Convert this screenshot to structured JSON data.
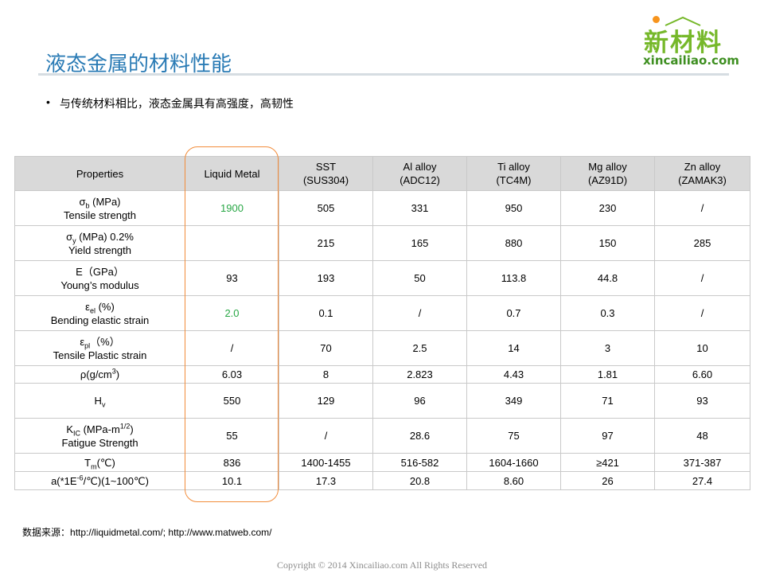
{
  "slide": {
    "title": "液态金属的材料性能",
    "bullet_marker": "•",
    "bullet": "与传统材料相比，液态金属具有高强度，高韧性"
  },
  "logo": {
    "brand_cn": "新材料",
    "brand_url": "xincailiao.com",
    "colors": {
      "green": "#76b82a",
      "dark_green": "#3e8f21",
      "orange": "#f7941d"
    }
  },
  "table": {
    "headers": [
      {
        "l1": "Properties",
        "l2": ""
      },
      {
        "l1": "Liquid Metal",
        "l2": ""
      },
      {
        "l1": "SST",
        "l2": "(SUS304)"
      },
      {
        "l1": "Al alloy",
        "l2": "(ADC12)"
      },
      {
        "l1": "Ti alloy",
        "l2": "(TC4M)"
      },
      {
        "l1": "Mg alloy",
        "l2": "(AZ91D)"
      },
      {
        "l1": "Zn alloy",
        "l2": "(ZAMAK3)"
      }
    ],
    "rows": [
      {
        "sym": "σ",
        "sub": "b",
        "sup": "",
        "suffix": " (MPa)",
        "name": "Tensile strength",
        "values": [
          "1900",
          "505",
          "331",
          "950",
          "230",
          "/"
        ]
      },
      {
        "sym": "σ",
        "sub": "y",
        "sup": "",
        "suffix": " (MPa) 0.2%",
        "name": "Yield strength",
        "values": [
          "",
          "215",
          "165",
          "880",
          "150",
          "285"
        ]
      },
      {
        "sym": "E（GPa）",
        "sub": "",
        "sup": "",
        "suffix": "",
        "name": "Young’s modulus",
        "values": [
          "93",
          "193",
          "50",
          "113.8",
          "44.8",
          "/"
        ]
      },
      {
        "sym": "ε",
        "sub": "el",
        "sup": "",
        "suffix": " (%)",
        "name": "Bending elastic strain",
        "values": [
          "2.0",
          "0.1",
          "/",
          "0.7",
          "0.3",
          "/"
        ]
      },
      {
        "sym": "ε",
        "sub": "pl",
        "sup": "",
        "suffix": "（%）",
        "name": "Tensile Plastic strain",
        "values": [
          "/",
          "70",
          "2.5",
          "14",
          "3",
          "10"
        ]
      },
      {
        "sym": "ρ(g/cm",
        "sub": "",
        "sup": "3",
        "suffix": ")",
        "name": "",
        "values": [
          "6.03",
          "8",
          "2.823",
          "4.43",
          "1.81",
          "6.60"
        ]
      },
      {
        "sym": "H",
        "sub": "v",
        "sup": "",
        "suffix": "",
        "name": "",
        "values": [
          "550",
          "129",
          "96",
          "349",
          "71",
          "93"
        ]
      },
      {
        "sym": "K",
        "sub": "IC",
        "sup": "",
        "suffix": " (MPa-m",
        "sup2": "1/2",
        "suffix2": ")",
        "name": "Fatigue Strength",
        "values": [
          "55",
          "/",
          "28.6",
          "75",
          "97",
          "48"
        ]
      },
      {
        "sym": "T",
        "sub": "m",
        "sup": "",
        "suffix": "(℃)",
        "name": "",
        "values": [
          "836",
          "1400-1455",
          "516-582",
          "1604-1660",
          "≥421",
          "371-387"
        ]
      },
      {
        "sym": "a(*1E",
        "sub": "",
        "sup": "-6",
        "suffix": "/℃)(1~100℃)",
        "name": "",
        "values": [
          "10.1",
          "17.3",
          "20.8",
          "8.60",
          "26",
          "27.4"
        ]
      }
    ],
    "highlight_color": "#f28c3a",
    "green_value_color": "#28a745"
  },
  "source": {
    "label": "数据来源：",
    "text": "http://liquidmetal.com/; http://www.matweb.com/"
  },
  "footer": {
    "copyright": "Copyright © 2014   Xincailiao.com    All Rights Reserved"
  }
}
